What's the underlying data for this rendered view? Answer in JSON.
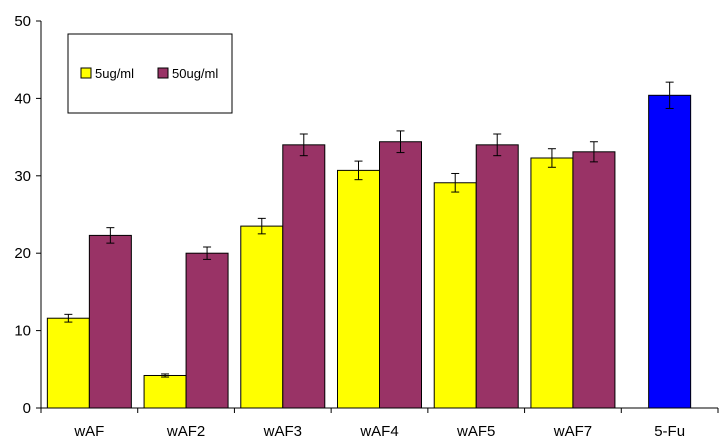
{
  "chart_data": {
    "type": "bar",
    "title": "",
    "xlabel": "",
    "ylabel": "",
    "categories": [
      "wAF",
      "wAF2",
      "wAF3",
      "wAF4",
      "wAF5",
      "wAF7",
      "5-Fu"
    ],
    "series": [
      {
        "name": "5ug/ml",
        "color": "#ffff00",
        "values": [
          11.6,
          4.2,
          23.5,
          30.7,
          29.1,
          32.3,
          null
        ],
        "errors": [
          0.5,
          0.2,
          1.0,
          1.2,
          1.2,
          1.2,
          null
        ]
      },
      {
        "name": "50ug/ml",
        "color": "#993366",
        "values": [
          22.3,
          20.0,
          34.0,
          34.4,
          34.0,
          33.1,
          null
        ],
        "errors": [
          1.0,
          0.8,
          1.4,
          1.4,
          1.4,
          1.3,
          null
        ]
      },
      {
        "name": "",
        "color": "#0000ff",
        "values": [
          null,
          null,
          null,
          null,
          null,
          null,
          40.4
        ],
        "errors": [
          null,
          null,
          null,
          null,
          null,
          null,
          1.7
        ]
      }
    ],
    "ylim": [
      0,
      50
    ],
    "yticks": [
      0,
      10,
      20,
      30,
      40,
      50
    ],
    "grid": false,
    "legend": {
      "placement": "top-left",
      "entries": [
        "5ug/ml",
        "50ug/ml"
      ]
    }
  }
}
